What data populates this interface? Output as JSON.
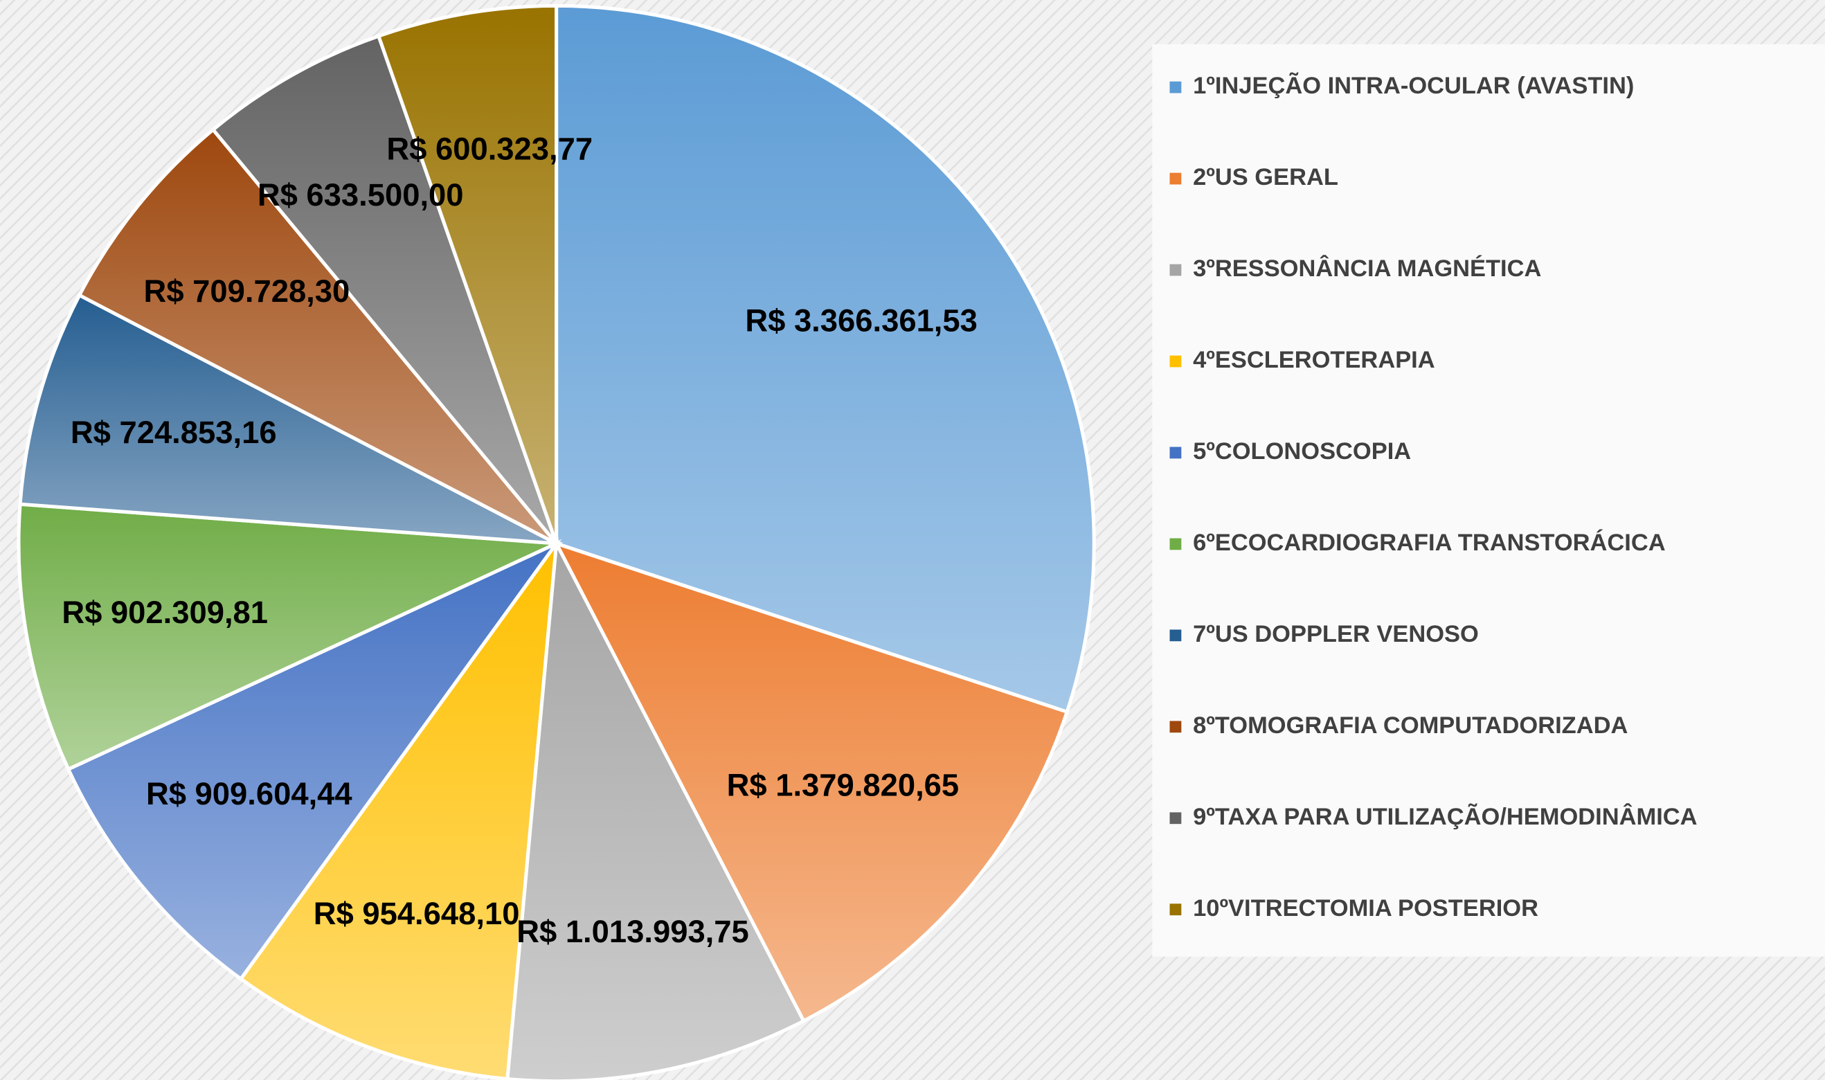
{
  "chart_data": {
    "type": "pie",
    "categories": [
      "1ºINJEÇÃO INTRA-OCULAR (AVASTIN)",
      "2ºUS GERAL",
      "3ºRESSONÂNCIA MAGNÉTICA",
      "4ºESCLEROTERAPIA",
      "5ºCOLONOSCOPIA",
      "6ºECOCARDIOGRAFIA TRANSTORÁCICA",
      "7ºUS DOPPLER VENOSO",
      "8ºTOMOGRAFIA COMPUTADORIZADA",
      "9ºTAXA PARA UTILIZAÇÃO/HEMODINÂMICA",
      "10ºVITRECTOMIA POSTERIOR"
    ],
    "values": [
      3366361.53,
      1379820.65,
      1013993.75,
      954648.1,
      909604.44,
      902309.81,
      724853.16,
      709728.3,
      633500.0,
      600323.77
    ],
    "value_labels": [
      "R$ 3.366.361,53",
      "R$ 1.379.820,65",
      "R$ 1.013.993,75",
      "R$ 954.648,10",
      "R$ 909.604,44",
      "R$ 902.309,81",
      "R$ 724.853,16",
      "R$ 709.728,30",
      "R$ 633.500,00",
      "R$ 600.323,77"
    ],
    "colors": [
      "#5b9bd5",
      "#ed7d31",
      "#a5a5a5",
      "#ffc000",
      "#4472c4",
      "#70ad47",
      "#255e91",
      "#9e480e",
      "#636363",
      "#997300"
    ],
    "legend": "right"
  }
}
